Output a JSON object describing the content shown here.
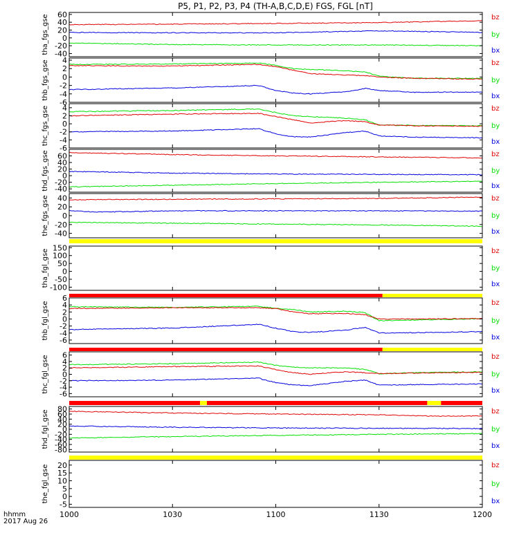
{
  "title": "P5, P1, P2, P3, P4 (TH-A,B,C,D,E) FGS, FGL [nT]",
  "x_axis": {
    "ticks": [
      "1000",
      "1030",
      "1100",
      "1130",
      "1200"
    ],
    "label_line1": "hhmm",
    "label_line2": "2017 Aug 26"
  },
  "colors": {
    "bz": "#e00000",
    "by": "#00e000",
    "bx": "#0000e0",
    "flag_red": "#ff0000",
    "flag_yellow": "#ffff00"
  },
  "chart_data": [
    {
      "type": "line",
      "ylabel": "tha_fgs_gse",
      "ylim": [
        -48,
        65
      ],
      "ticks": [
        60,
        40,
        20,
        0,
        -20,
        -40
      ],
      "legend": [
        "bz",
        "by",
        "bx"
      ],
      "series": [
        {
          "name": "bz",
          "x": [
            "10:00",
            "10:30",
            "11:00",
            "11:30",
            "12:00"
          ],
          "values": [
            34,
            35,
            37,
            39,
            44
          ]
        },
        {
          "name": "bx",
          "x": [
            "10:00",
            "10:30",
            "11:00",
            "11:30",
            "12:00"
          ],
          "values": [
            14,
            13,
            13,
            18,
            14
          ]
        },
        {
          "name": "by",
          "x": [
            "10:00",
            "10:30",
            "11:00",
            "11:30",
            "12:00"
          ],
          "values": [
            -13,
            -17,
            -18,
            -18,
            -20
          ]
        }
      ]
    },
    {
      "type": "line",
      "ylabel": "thb_fgs_gse",
      "ylim": [
        -6,
        4.5
      ],
      "ticks": [
        4,
        2,
        0,
        -2,
        -4,
        -6
      ],
      "legend": [
        "bz",
        "by",
        "bx"
      ],
      "series": [
        {
          "name": "by",
          "x": [
            "10:00",
            "10:30",
            "10:55",
            "11:00",
            "11:05",
            "11:10",
            "11:20",
            "11:26",
            "11:30",
            "11:40",
            "12:00"
          ],
          "values": [
            3.0,
            3.1,
            3.3,
            2.8,
            2.0,
            1.8,
            1.5,
            1.2,
            0.2,
            -0.3,
            -0.3
          ]
        },
        {
          "name": "bz",
          "x": [
            "10:00",
            "10:30",
            "10:55",
            "11:00",
            "11:05",
            "11:10",
            "11:20",
            "11:26",
            "11:30",
            "11:40",
            "12:00"
          ],
          "values": [
            2.7,
            2.6,
            3.0,
            2.5,
            1.6,
            0.8,
            0.5,
            0.3,
            0.0,
            -0.3,
            -0.5
          ]
        },
        {
          "name": "bx",
          "x": [
            "10:00",
            "10:30",
            "10:55",
            "11:00",
            "11:05",
            "11:10",
            "11:20",
            "11:26",
            "11:30",
            "11:40",
            "12:00"
          ],
          "values": [
            -3.0,
            -2.6,
            -2.0,
            -3.2,
            -3.8,
            -4.0,
            -3.5,
            -2.7,
            -3.2,
            -3.6,
            -3.6
          ]
        }
      ]
    },
    {
      "type": "line",
      "ylabel": "thc_fgs_gse",
      "ylim": [
        -6,
        5
      ],
      "ticks": [
        4,
        2,
        0,
        -2,
        -4,
        -6
      ],
      "legend": [
        "bz",
        "by",
        "bx"
      ],
      "series": [
        {
          "name": "by",
          "x": [
            "10:00",
            "10:30",
            "10:55",
            "11:00",
            "11:05",
            "11:10",
            "11:20",
            "11:26",
            "11:30",
            "11:40",
            "12:00"
          ],
          "values": [
            3.0,
            3.3,
            3.7,
            2.8,
            2.0,
            1.8,
            1.4,
            1.0,
            -0.3,
            -0.4,
            -0.5
          ]
        },
        {
          "name": "bz",
          "x": [
            "10:00",
            "10:30",
            "10:55",
            "11:00",
            "11:05",
            "11:10",
            "11:20",
            "11:26",
            "11:30",
            "11:40",
            "12:00"
          ],
          "values": [
            2.0,
            2.4,
            2.6,
            1.8,
            1.0,
            0.2,
            0.8,
            0.5,
            -0.3,
            -0.5,
            -0.6
          ]
        },
        {
          "name": "bx",
          "x": [
            "10:00",
            "10:30",
            "10:55",
            "11:00",
            "11:05",
            "11:10",
            "11:20",
            "11:26",
            "11:30",
            "11:40",
            "12:00"
          ],
          "values": [
            -2.0,
            -1.8,
            -1.2,
            -2.5,
            -3.2,
            -3.3,
            -2.2,
            -1.8,
            -3.0,
            -3.3,
            -3.5
          ]
        }
      ]
    },
    {
      "type": "line",
      "ylabel": "thd_fgs_gse",
      "ylim": [
        -50,
        80
      ],
      "ticks": [
        60,
        40,
        20,
        0,
        -20,
        -40
      ],
      "legend": [
        "bz",
        "by",
        "bx"
      ],
      "series": [
        {
          "name": "bz",
          "x": [
            "10:00",
            "10:30",
            "11:00",
            "11:30",
            "12:00"
          ],
          "values": [
            70,
            64,
            60,
            57,
            54
          ]
        },
        {
          "name": "bx",
          "x": [
            "10:00",
            "10:30",
            "11:00",
            "11:30",
            "12:00"
          ],
          "values": [
            13,
            8,
            5,
            4,
            3
          ]
        },
        {
          "name": "by",
          "x": [
            "10:00",
            "10:30",
            "11:00",
            "11:30",
            "12:00"
          ],
          "values": [
            -34,
            -29,
            -24,
            -20,
            -17
          ]
        }
      ]
    },
    {
      "type": "line",
      "ylabel": "the_fgs_gse",
      "ylim": [
        -50,
        50
      ],
      "ticks": [
        40,
        20,
        0,
        -20,
        -40
      ],
      "legend": [
        "bz",
        "by",
        "bx"
      ],
      "series": [
        {
          "name": "bz",
          "x": [
            "10:00",
            "10:30",
            "11:00",
            "11:30",
            "12:00"
          ],
          "values": [
            36,
            37,
            38,
            39,
            42
          ]
        },
        {
          "name": "bx",
          "x": [
            "10:00",
            "10:07",
            "10:30",
            "11:00",
            "11:30",
            "12:00"
          ],
          "values": [
            12,
            8,
            11,
            11,
            11,
            10
          ]
        },
        {
          "name": "by",
          "x": [
            "10:00",
            "10:30",
            "11:00",
            "11:30",
            "12:00"
          ],
          "values": [
            -15,
            -17,
            -19,
            -21,
            -24
          ]
        }
      ]
    },
    {
      "type": "line",
      "ylabel": "tha_fgl_gse",
      "ylim": [
        -120,
        160
      ],
      "ticks": [
        150,
        100,
        50,
        0,
        -50,
        -100
      ],
      "legend": [
        "bz",
        "by",
        "bx"
      ],
      "series": []
    },
    {
      "type": "line",
      "ylabel": "thb_fgl_gse",
      "ylim": [
        -7,
        6
      ],
      "ticks": [
        6,
        4,
        2,
        0,
        -2,
        -4,
        -6
      ],
      "legend": [
        "bz",
        "by",
        "bx"
      ],
      "series": [
        {
          "name": "by",
          "x": [
            "10:00",
            "10:30",
            "10:55",
            "11:00",
            "11:05",
            "11:10",
            "11:20",
            "11:26",
            "11:30",
            "11:40",
            "12:00"
          ],
          "values": [
            3.5,
            3.3,
            3.6,
            3.0,
            2.7,
            2.0,
            2.2,
            1.8,
            -0.5,
            -0.3,
            0.1
          ]
        },
        {
          "name": "bz",
          "x": [
            "10:00",
            "10:30",
            "10:55",
            "11:00",
            "11:05",
            "11:10",
            "11:20",
            "11:26",
            "11:30",
            "11:40",
            "12:00"
          ],
          "values": [
            3.0,
            3.2,
            3.2,
            3.0,
            2.0,
            1.5,
            1.6,
            1.2,
            0.0,
            0.0,
            0.1
          ]
        },
        {
          "name": "bx",
          "x": [
            "10:00",
            "10:30",
            "10:55",
            "11:00",
            "11:05",
            "11:10",
            "11:20",
            "11:26",
            "11:30",
            "11:40",
            "12:00"
          ],
          "values": [
            -3.0,
            -2.6,
            -1.5,
            -2.6,
            -3.6,
            -3.8,
            -3.2,
            -2.4,
            -4.0,
            -3.9,
            -3.6
          ]
        }
      ]
    },
    {
      "type": "line",
      "ylabel": "thc_fgl_gse",
      "ylim": [
        -7,
        7
      ],
      "ticks": [
        6,
        4,
        2,
        0,
        -2,
        -4,
        -6
      ],
      "legend": [
        "bz",
        "by",
        "bx"
      ],
      "series": [
        {
          "name": "by",
          "x": [
            "10:00",
            "10:30",
            "10:55",
            "11:00",
            "11:05",
            "11:10",
            "11:20",
            "11:26",
            "11:30",
            "11:40",
            "12:00"
          ],
          "values": [
            3.0,
            3.3,
            3.8,
            2.8,
            2.2,
            2.0,
            2.0,
            1.5,
            0.2,
            0.5,
            0.8
          ]
        },
        {
          "name": "bz",
          "x": [
            "10:00",
            "10:30",
            "10:55",
            "11:00",
            "11:05",
            "11:10",
            "11:20",
            "11:26",
            "11:30",
            "11:40",
            "12:00"
          ],
          "values": [
            2.0,
            2.4,
            2.6,
            1.5,
            0.5,
            0.0,
            0.8,
            0.5,
            0.2,
            0.4,
            0.6
          ]
        },
        {
          "name": "bx",
          "x": [
            "10:00",
            "10:30",
            "10:55",
            "11:00",
            "11:05",
            "11:10",
            "11:20",
            "11:26",
            "11:30",
            "11:40",
            "12:00"
          ],
          "values": [
            -2.0,
            -1.8,
            -1.2,
            -2.6,
            -3.3,
            -3.5,
            -2.2,
            -1.8,
            -3.4,
            -3.2,
            -3.0
          ]
        }
      ]
    },
    {
      "type": "line",
      "ylabel": "thd_fgl_gse",
      "ylim": [
        -90,
        90
      ],
      "ticks": [
        80,
        60,
        40,
        20,
        0,
        -20,
        -40,
        -60,
        -80
      ],
      "legend": [
        "bz",
        "by",
        "bx"
      ],
      "series": [
        {
          "name": "bz",
          "x": [
            "10:00",
            "10:30",
            "11:00",
            "11:30",
            "11:45",
            "12:00"
          ],
          "values": [
            71,
            64,
            60,
            57,
            52,
            52
          ]
        },
        {
          "name": "bx",
          "x": [
            "10:00",
            "10:30",
            "11:00",
            "11:30",
            "12:00"
          ],
          "values": [
            13,
            8,
            5,
            4,
            3
          ]
        },
        {
          "name": "by",
          "x": [
            "10:00",
            "10:30",
            "11:00",
            "11:30",
            "12:00"
          ],
          "values": [
            -34,
            -29,
            -24,
            -20,
            -17
          ]
        }
      ]
    },
    {
      "type": "line",
      "ylabel": "the_fgl_gse",
      "ylim": [
        -7,
        23
      ],
      "ticks": [
        20,
        15,
        10,
        5,
        0,
        -5
      ],
      "legend": [
        "bz",
        "by",
        "bx"
      ],
      "series": []
    }
  ],
  "flag_bars": [
    {
      "segments": [
        {
          "start": "10:00",
          "end": "12:00",
          "color": "yellow"
        }
      ]
    },
    {
      "segments": [
        {
          "start": "10:00",
          "end": "11:31",
          "color": "red"
        },
        {
          "start": "11:31",
          "end": "12:00",
          "color": "yellow"
        }
      ]
    },
    {
      "segments": [
        {
          "start": "10:00",
          "end": "11:31",
          "color": "red"
        },
        {
          "start": "11:31",
          "end": "12:00",
          "color": "yellow"
        }
      ]
    },
    {
      "segments": [
        {
          "start": "10:00",
          "end": "10:38",
          "color": "red"
        },
        {
          "start": "10:38",
          "end": "10:40",
          "color": "yellow"
        },
        {
          "start": "10:40",
          "end": "11:44",
          "color": "red"
        },
        {
          "start": "11:44",
          "end": "11:48",
          "color": "yellow"
        },
        {
          "start": "11:48",
          "end": "12:00",
          "color": "red"
        }
      ]
    },
    {
      "segments": [
        {
          "start": "10:00",
          "end": "12:00",
          "color": "yellow"
        }
      ]
    }
  ]
}
